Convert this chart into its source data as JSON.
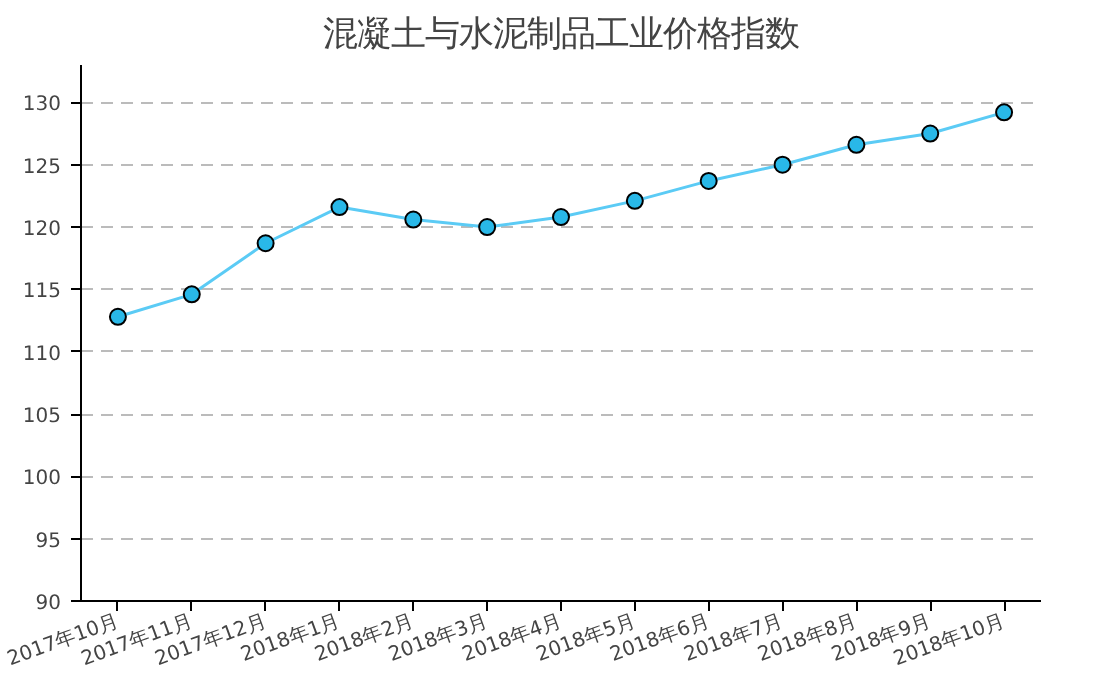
{
  "chart_data": {
    "type": "line",
    "title": "混凝土与水泥制品工业价格指数",
    "categories": [
      "2017年10月",
      "2017年11月",
      "2017年12月",
      "2018年1月",
      "2018年2月",
      "2018年3月",
      "2018年4月",
      "2018年5月",
      "2018年6月",
      "2018年7月",
      "2018年8月",
      "2018年9月",
      "2018年10月"
    ],
    "series": [
      {
        "color": "#5bcbf5",
        "values": [
          112.8,
          114.6,
          118.7,
          121.6,
          120.6,
          120.0,
          120.8,
          122.1,
          123.7,
          125.0,
          126.6,
          127.5,
          129.2
        ]
      }
    ],
    "ylim": [
      90,
      133
    ],
    "yticks": [
      90,
      95,
      100,
      105,
      110,
      115,
      120,
      125,
      130
    ],
    "grid": "y",
    "marker": "circle"
  }
}
